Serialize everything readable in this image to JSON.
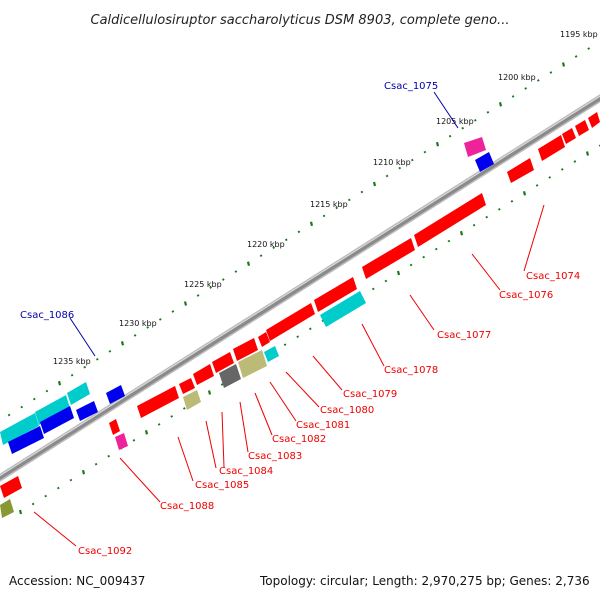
{
  "title": "Caldicellulosiruptor saccharolyticus DSM 8903, complete geno...",
  "footer": {
    "accession": "Accession: NC_009437",
    "summary": "Topology: circular; Length: 2,970,275 bp; Genes: 2,736"
  },
  "scale_labels": [
    "1195 kbp",
    "1200 kbp",
    "1205 kbp",
    "1210 kbp",
    "1215 kbp",
    "1220 kbp",
    "1225 kbp",
    "1230 kbp",
    "1235 kbp"
  ],
  "colors": {
    "red": "#ff0000",
    "cyan": "#00cccc",
    "blue": "#0000ee",
    "magenta": "#ee2299",
    "gray": "#666666",
    "khaki": "#bbbb77",
    "olive": "#889933",
    "red_label": "#ee0000",
    "blue_label": "#0000aa",
    "backbone": "#8a8a8a",
    "tick": "#1a7a1a"
  },
  "gene_labels": [
    "Csac_1074",
    "Csac_1075",
    "Csac_1076",
    "Csac_1077",
    "Csac_1078",
    "Csac_1079",
    "Csac_1080",
    "Csac_1081",
    "Csac_1082",
    "Csac_1083",
    "Csac_1084",
    "Csac_1085",
    "Csac_1086",
    "Csac_1088",
    "Csac_1092"
  ]
}
